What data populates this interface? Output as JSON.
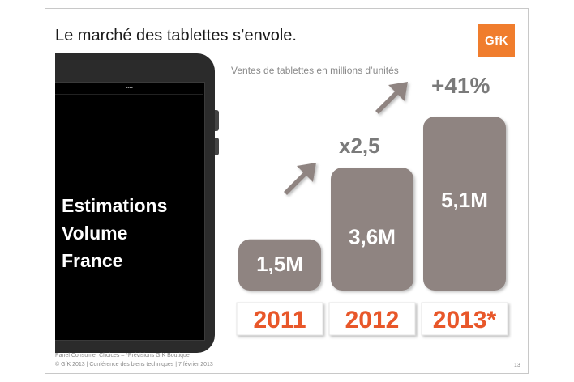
{
  "slide": {
    "title": "Le marché des tablettes s’envole.",
    "logo_text": "GfK",
    "subtitle": "Ventes de tablettes en millions d’unités",
    "overlay_lines": [
      "Estimations",
      "Volume",
      "France"
    ],
    "footer_line1": "Panel Consumer Choices – *Prévisions GfK Boutique",
    "footer_line2": "© GfK 2013 | Conférence des biens techniques | 7 février 2013",
    "page_number": "13"
  },
  "chart_data": {
    "type": "bar",
    "title": "Ventes de tablettes en millions d’unités",
    "categories": [
      "2011",
      "2012",
      "2013*"
    ],
    "values": [
      1.5,
      3.6,
      5.1
    ],
    "value_labels": [
      "1,5M",
      "3,6M",
      "5,1M"
    ],
    "growth_annotations": [
      "x2,5",
      "+41%"
    ],
    "unit": "millions d’unités",
    "colors": {
      "bar": "#8f8481",
      "category_label": "#e8572a",
      "arrow": "#8f8481",
      "annotation": "#7a7a7a"
    }
  }
}
